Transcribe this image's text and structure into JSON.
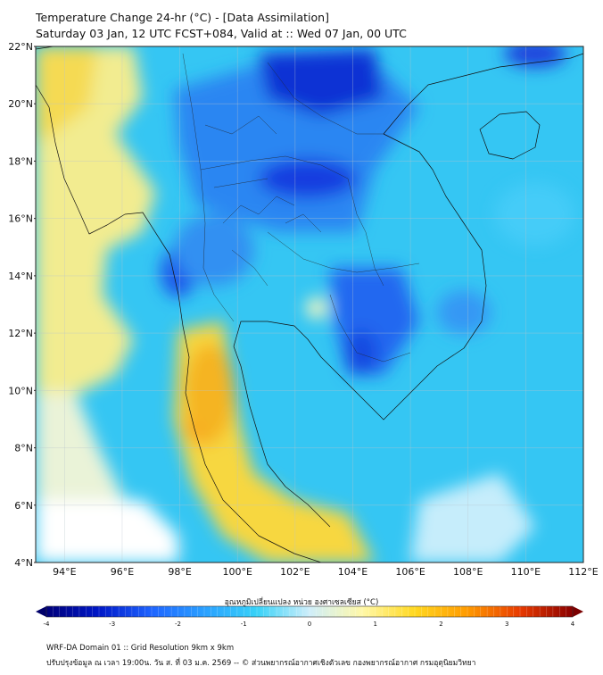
{
  "header": {
    "title": "Temperature Change 24-hr (°C) - [Data Assimilation]",
    "subtitle": "Saturday 03 Jan, 12 UTC FCST+084, Valid at :: Wed 07 Jan, 00 UTC"
  },
  "map": {
    "lon_range": [
      93,
      112
    ],
    "lat_range": [
      4,
      22
    ],
    "lat_labels": [
      "22°N",
      "20°N",
      "18°N",
      "16°N",
      "14°N",
      "12°N",
      "10°N",
      "8°N",
      "6°N",
      "4°N"
    ],
    "lon_labels": [
      "94°E",
      "96°E",
      "98°E",
      "100°E",
      "102°E",
      "104°E",
      "106°E",
      "108°E",
      "110°E",
      "112°E"
    ],
    "lat_values": [
      22,
      20,
      18,
      16,
      14,
      12,
      10,
      8,
      6,
      4
    ],
    "lon_values": [
      94,
      96,
      98,
      100,
      102,
      104,
      106,
      108,
      110,
      112
    ]
  },
  "colorbar": {
    "title": "อุณหภูมิเปลี่ยนแปลง หน่วย องศาเซลเซียส (°C)",
    "tick_labels": [
      "-4",
      "-3",
      "-2",
      "-1",
      "0",
      "1",
      "2",
      "3",
      "4"
    ],
    "tick_values": [
      -4,
      -3,
      -2,
      -1,
      0,
      1,
      2,
      3,
      4
    ],
    "colors": [
      "#00007a",
      "#0018c8",
      "#1e64ff",
      "#2aa0ff",
      "#38d2f8",
      "#cfeefa",
      "#fff8a8",
      "#ffd820",
      "#ff9a00",
      "#e83a00",
      "#8a0000"
    ]
  },
  "footer": {
    "line1": "WRF-DA Domain 01 :: Grid Resolution 9km x 9km",
    "line2": "ปรับปรุงข้อมูล ณ เวลา 19:00น. วัน ส. ที่ 03 ม.ค. 2569 -- © ส่วนพยากรณ์อากาศเชิงตัวเลข กองพยากรณ์อากาศ กรมอุตุนิยมวิทยา"
  }
}
